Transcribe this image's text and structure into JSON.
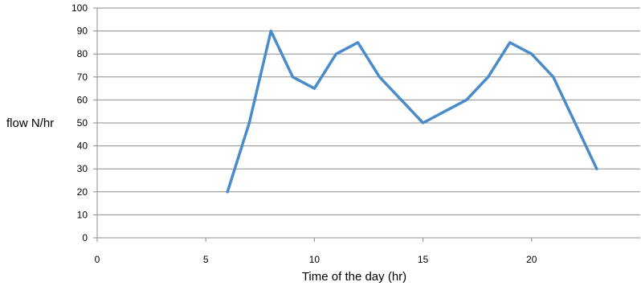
{
  "chart_data": {
    "type": "line",
    "xlabel": "Time of the day (hr)",
    "ylabel": "flow N/hr",
    "xlim": [
      0,
      25
    ],
    "ylim": [
      0,
      100
    ],
    "x_ticks": [
      0,
      5,
      10,
      15,
      20
    ],
    "y_ticks": [
      0,
      10,
      20,
      30,
      40,
      50,
      60,
      70,
      80,
      90,
      100
    ],
    "grid": "horizontal",
    "legend": "none",
    "series": [
      {
        "color": "#4a8bc9",
        "x": [
          6,
          7,
          8,
          9,
          10,
          11,
          12,
          13,
          14,
          15,
          16,
          17,
          18,
          19,
          20,
          21,
          22,
          23
        ],
        "y": [
          20,
          50,
          90,
          70,
          65,
          80,
          85,
          70,
          60,
          50,
          55,
          60,
          70,
          85,
          80,
          70,
          50,
          30
        ]
      }
    ]
  }
}
